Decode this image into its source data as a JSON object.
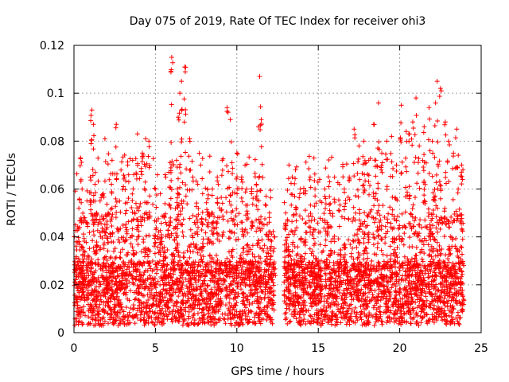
{
  "chart_data": {
    "type": "scatter",
    "title": "Day 075 of 2019, Rate Of TEC Index for receiver ohi3",
    "xlabel": "GPS time / hours",
    "ylabel": "ROTI / TECUs",
    "xlim": [
      0,
      25
    ],
    "ylim": [
      0,
      0.12
    ],
    "x_ticks": [
      0,
      5,
      10,
      15,
      20,
      25
    ],
    "x_tick_labels": [
      "0",
      "5",
      "10",
      "15",
      "20",
      "25"
    ],
    "y_ticks": [
      0,
      0.02,
      0.04,
      0.06,
      0.08,
      0.1,
      0.12
    ],
    "y_tick_labels": [
      "0",
      "0.02",
      "0.04",
      "0.06",
      "0.08",
      "0.1",
      "0.12"
    ],
    "grid": true,
    "marker": "+",
    "color": "#ff0000",
    "series": [
      {
        "name": "ROTI",
        "x": [
          0.1,
          0.3,
          0.4,
          0.5,
          0.6,
          0.8,
          1.0,
          1.1,
          1.2,
          1.4,
          1.6,
          1.8,
          1.9,
          2.1,
          2.3,
          2.6,
          2.8,
          3.1,
          3.3,
          3.6,
          3.9,
          4.2,
          4.4,
          4.6,
          5.0,
          5.3,
          5.6,
          5.9,
          6.0,
          6.3,
          6.4,
          6.5,
          6.6,
          6.8,
          7.1,
          7.3,
          7.6,
          7.9,
          8.2,
          8.5,
          8.8,
          9.1,
          9.4,
          9.6,
          9.7,
          10.0,
          10.3,
          10.6,
          10.9,
          11.2,
          11.4,
          11.5,
          11.8,
          12.0,
          12.3,
          13.0,
          13.2,
          13.4,
          13.6,
          13.9,
          14.2,
          14.5,
          14.8,
          15.1,
          15.4,
          15.7,
          16.0,
          16.3,
          16.6,
          16.9,
          17.2,
          17.5,
          17.8,
          18.1,
          18.4,
          18.7,
          18.9,
          19.2,
          19.5,
          19.8,
          20.1,
          20.4,
          20.6,
          20.8,
          21.0,
          21.2,
          21.5,
          21.8,
          22.0,
          22.2,
          22.3,
          22.5,
          22.8,
          23.0,
          23.3,
          23.5,
          23.8
        ],
        "y": [
          0.045,
          0.052,
          0.073,
          0.06,
          0.048,
          0.055,
          0.065,
          0.093,
          0.087,
          0.05,
          0.055,
          0.058,
          0.081,
          0.05,
          0.062,
          0.087,
          0.055,
          0.065,
          0.07,
          0.072,
          0.083,
          0.075,
          0.081,
          0.08,
          0.06,
          0.058,
          0.066,
          0.071,
          0.115,
          0.072,
          0.09,
          0.1,
          0.105,
          0.111,
          0.081,
          0.065,
          0.062,
          0.058,
          0.06,
          0.06,
          0.065,
          0.072,
          0.094,
          0.089,
          0.071,
          0.075,
          0.065,
          0.06,
          0.058,
          0.062,
          0.107,
          0.089,
          0.057,
          0.05,
          0.04,
          0.05,
          0.07,
          0.065,
          0.068,
          0.06,
          0.058,
          0.065,
          0.06,
          0.055,
          0.06,
          0.063,
          0.065,
          0.062,
          0.06,
          0.065,
          0.085,
          0.078,
          0.08,
          0.072,
          0.087,
          0.096,
          0.075,
          0.08,
          0.082,
          0.07,
          0.095,
          0.084,
          0.083,
          0.088,
          0.098,
          0.078,
          0.086,
          0.094,
          0.08,
          0.096,
          0.105,
          0.102,
          0.088,
          0.08,
          0.075,
          0.085,
          0.07
        ]
      }
    ],
    "gaps": [
      [
        12.3,
        12.9
      ]
    ],
    "baseline_range": [
      0.003,
      0.03
    ]
  }
}
